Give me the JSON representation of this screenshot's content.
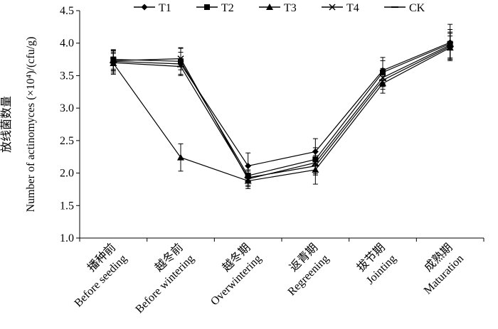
{
  "chart_data": {
    "type": "line",
    "title": "",
    "xlabel": "",
    "ylabel_cn": "放线菌数量",
    "ylabel_en": "Number of actinomyces (×10⁴)/(cfu/g)",
    "ylim": [
      1.0,
      4.5
    ],
    "yticks": [
      "1.0",
      "1.5",
      "2.0",
      "2.5",
      "3.0",
      "3.5",
      "4.0",
      "4.5"
    ],
    "categories": [
      {
        "cn": "播种前",
        "en": "Before seeding"
      },
      {
        "cn": "越冬前",
        "en": "Before wintering"
      },
      {
        "cn": "越冬期",
        "en": "Overwintering"
      },
      {
        "cn": "返青期",
        "en": "Regreening"
      },
      {
        "cn": "拔节期",
        "en": "Jointing"
      },
      {
        "cn": "成熟期",
        "en": "Maturation"
      }
    ],
    "legend_position": "top",
    "series": [
      {
        "name": "T1",
        "marker": "diamond",
        "values": [
          3.72,
          3.68,
          2.11,
          2.33,
          3.58,
          4.01
        ],
        "errors": [
          0.14,
          0.18,
          0.2,
          0.2,
          0.2,
          0.28
        ]
      },
      {
        "name": "T2",
        "marker": "square",
        "values": [
          3.75,
          3.72,
          1.96,
          2.21,
          3.55,
          3.99
        ],
        "errors": [
          0.15,
          0.2,
          0.15,
          0.18,
          0.18,
          0.22
        ]
      },
      {
        "name": "T3",
        "marker": "triangle",
        "values": [
          3.69,
          2.24,
          1.88,
          2.05,
          3.38,
          3.93
        ],
        "errors": [
          0.15,
          0.21,
          0.12,
          0.22,
          0.15,
          0.18
        ]
      },
      {
        "name": "T4",
        "marker": "x",
        "values": [
          3.73,
          3.76,
          1.91,
          2.16,
          3.47,
          3.97
        ],
        "errors": [
          0.16,
          0.17,
          0.12,
          0.17,
          0.14,
          0.2
        ]
      },
      {
        "name": "CK",
        "marker": "dash",
        "values": [
          3.7,
          3.64,
          1.93,
          2.11,
          3.43,
          3.95
        ],
        "errors": [
          0.18,
          0.12,
          0.12,
          0.14,
          0.14,
          0.2
        ]
      }
    ]
  }
}
